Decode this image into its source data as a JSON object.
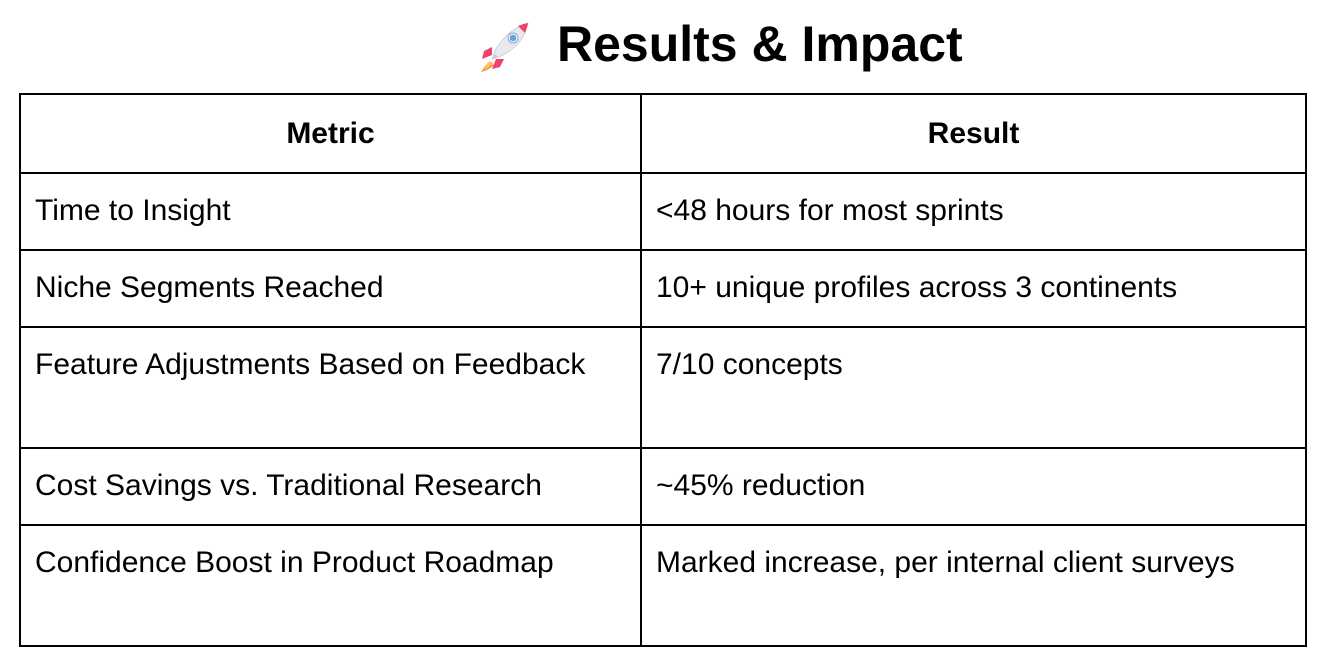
{
  "header": {
    "icon": "rocket-icon",
    "title": "Results & Impact"
  },
  "table": {
    "columns": [
      "Metric",
      "Result"
    ],
    "rows": [
      {
        "metric": "Time to Insight",
        "result": "<48 hours for most sprints"
      },
      {
        "metric": "Niche Segments Reached",
        "result": "10+ unique profiles across 3 continents"
      },
      {
        "metric": "Feature Adjustments Based on Feedback",
        "result": "7/10 concepts"
      },
      {
        "metric": "Cost Savings vs. Traditional Research",
        "result": "~45% reduction"
      },
      {
        "metric": "Confidence Boost in Product Roadmap",
        "result": "Marked increase, per internal client surveys"
      }
    ]
  },
  "colors": {
    "rocket_body": "#e8e8ee",
    "rocket_accent": "#f0436b",
    "rocket_window": "#5aa6e8",
    "flame": "#f7923a"
  }
}
